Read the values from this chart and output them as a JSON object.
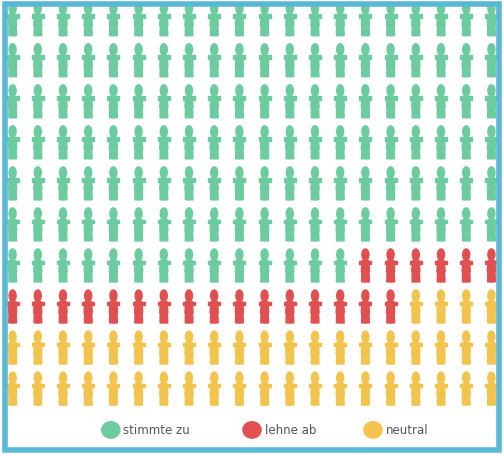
{
  "total": 200,
  "cols": 20,
  "rows": 10,
  "green_count": 134,
  "red_count": 22,
  "yellow_count": 44,
  "green_color": "#6DCBA0",
  "red_color": "#E05050",
  "yellow_color": "#F2C44E",
  "bg_color": "#FFFFFF",
  "border_color": "#5BB8D4",
  "border_lw": 4,
  "legend_items": [
    {
      "label": "stimmte zu",
      "color": "#6DCBA0"
    },
    {
      "label": "lehne ab",
      "color": "#E05050"
    },
    {
      "label": "neutral",
      "color": "#F2C44E"
    }
  ],
  "figure_width": 5.04,
  "figure_height": 4.56,
  "dpi": 100
}
